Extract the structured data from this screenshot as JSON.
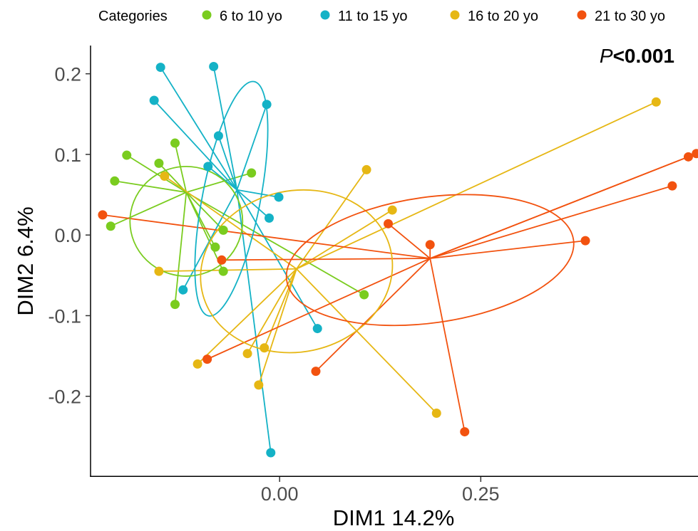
{
  "chart_data": {
    "type": "scatter",
    "title": "",
    "annotation": {
      "italic": "P",
      "rest": "<0.001"
    },
    "xlabel": "DIM1 14.2%",
    "ylabel": "DIM2 6.4%",
    "xlim": [
      -0.235,
      0.52
    ],
    "ylim": [
      -0.3,
      0.235
    ],
    "xticks": [
      0.0,
      0.25
    ],
    "xtick_labels": [
      "0.00",
      "0.25"
    ],
    "yticks": [
      0.2,
      0.1,
      0.0,
      -0.1,
      -0.2
    ],
    "ytick_labels": [
      "0.2",
      "0.1",
      "0.0",
      "-0.1",
      "-0.2"
    ],
    "grid": false,
    "legend": {
      "title": "Categories",
      "position": "top"
    },
    "series": [
      {
        "name": "6 to 10 yo",
        "color": "#7acc1f",
        "centroid": [
          -0.116,
          0.053
        ],
        "ellipse": {
          "cx": -0.116,
          "cy": 0.017,
          "rx": 0.07,
          "ry": 0.068,
          "angle": -0.4
        },
        "points": [
          [
            -0.19,
            0.099
          ],
          [
            -0.205,
            0.067
          ],
          [
            -0.21,
            0.011
          ],
          [
            -0.15,
            0.089
          ],
          [
            -0.13,
            0.114
          ],
          [
            -0.035,
            0.077
          ],
          [
            -0.07,
            0.006
          ],
          [
            -0.08,
            -0.015
          ],
          [
            -0.07,
            -0.045
          ],
          [
            -0.13,
            -0.086
          ],
          [
            0.105,
            -0.074
          ]
        ]
      },
      {
        "name": "11 to 15 yo",
        "color": "#14b2c6",
        "centroid": [
          -0.053,
          0.056
        ],
        "ellipse": {
          "cx": -0.06,
          "cy": 0.045,
          "rx": 0.036,
          "ry": 0.148,
          "angle": 11
        },
        "points": [
          [
            -0.148,
            0.208
          ],
          [
            -0.082,
            0.209
          ],
          [
            -0.156,
            0.167
          ],
          [
            -0.016,
            0.162
          ],
          [
            -0.076,
            0.123
          ],
          [
            -0.089,
            0.085
          ],
          [
            -0.001,
            0.047
          ],
          [
            -0.013,
            0.021
          ],
          [
            -0.12,
            -0.068
          ],
          [
            0.047,
            -0.116
          ],
          [
            -0.011,
            -0.27
          ]
        ]
      },
      {
        "name": "16 to 20 yo",
        "color": "#e6b714",
        "centroid": [
          0.021,
          -0.042
        ],
        "ellipse": {
          "cx": 0.021,
          "cy": -0.045,
          "rx": 0.12,
          "ry": 0.1,
          "angle": -12
        },
        "points": [
          [
            0.468,
            0.165
          ],
          [
            0.108,
            0.081
          ],
          [
            0.14,
            0.031
          ],
          [
            -0.143,
            0.073
          ],
          [
            -0.15,
            -0.045
          ],
          [
            -0.102,
            -0.16
          ],
          [
            -0.04,
            -0.147
          ],
          [
            -0.026,
            -0.186
          ],
          [
            -0.019,
            -0.14
          ],
          [
            0.195,
            -0.221
          ]
        ]
      },
      {
        "name": "21 to 30 yo",
        "color": "#f2520f",
        "centroid": [
          0.187,
          -0.029
        ],
        "ellipse": {
          "cx": 0.187,
          "cy": -0.031,
          "rx": 0.18,
          "ry": 0.078,
          "angle": -8
        },
        "points": [
          [
            -0.22,
            0.025
          ],
          [
            -0.072,
            -0.031
          ],
          [
            -0.09,
            -0.154
          ],
          [
            0.045,
            -0.169
          ],
          [
            0.135,
            0.014
          ],
          [
            0.187,
            -0.012
          ],
          [
            0.23,
            -0.244
          ],
          [
            0.38,
            -0.007
          ],
          [
            0.488,
            0.061
          ],
          [
            0.508,
            0.097
          ],
          [
            0.518,
            0.101
          ]
        ]
      }
    ]
  }
}
